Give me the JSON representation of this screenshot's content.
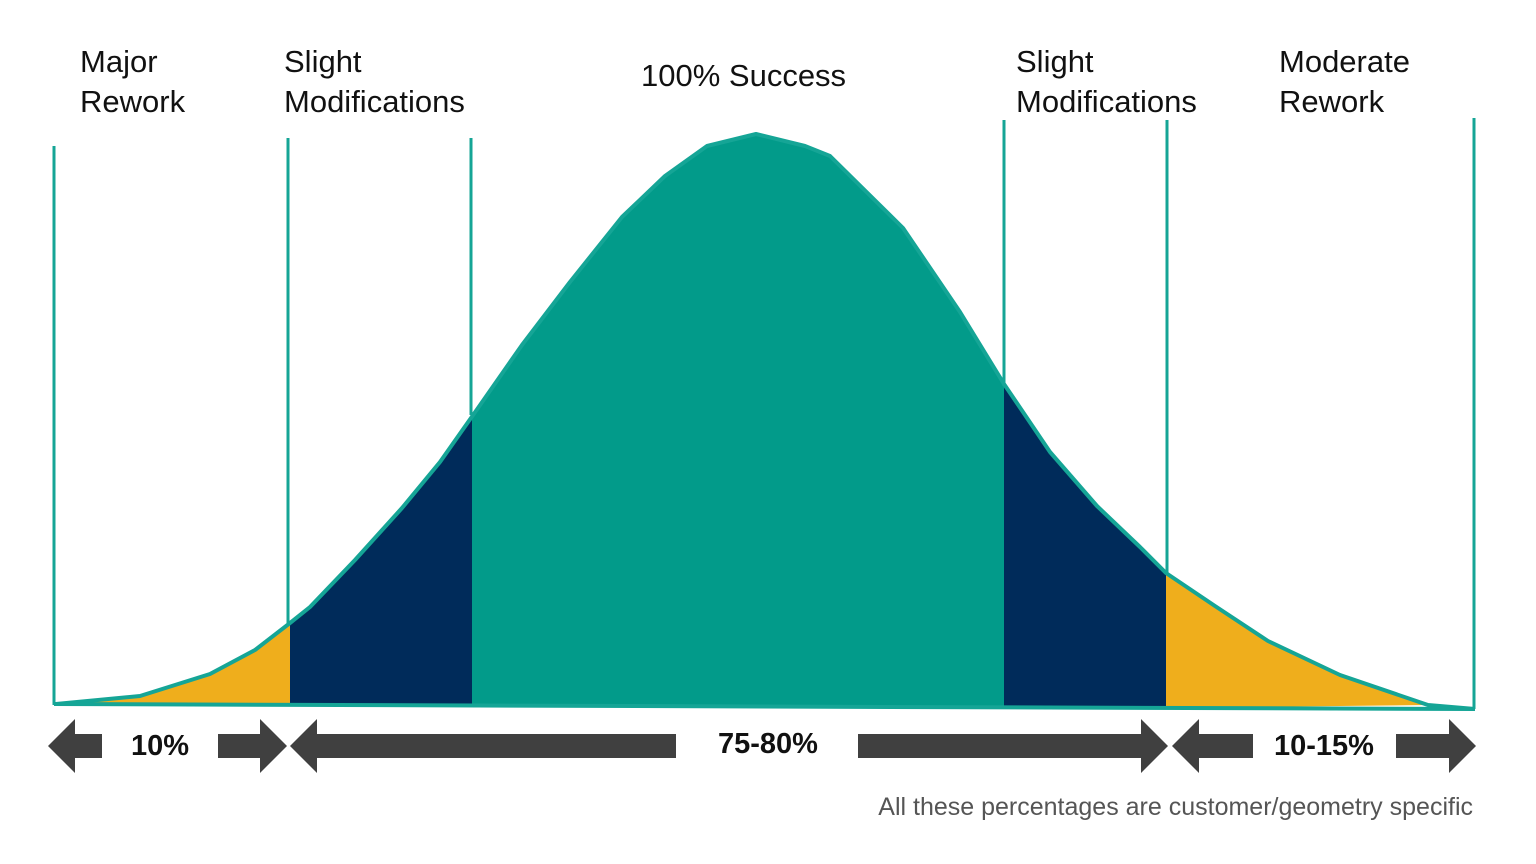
{
  "colors": {
    "success": "#029b8a",
    "slight": "#002b5a",
    "rework": "#efae1c",
    "divider": "#15a596",
    "arrow": "#404040"
  },
  "zones": [
    {
      "id": "major-rework",
      "line1": "Major",
      "line2": "Rework"
    },
    {
      "id": "slight-modifications-left",
      "line1": "Slight",
      "line2": "Modifications"
    },
    {
      "id": "success",
      "line1": "100% Success",
      "line2": ""
    },
    {
      "id": "slight-modifications-right",
      "line1": "Slight",
      "line2": "Modifications"
    },
    {
      "id": "moderate-rework",
      "line1": "Moderate",
      "line2": "Rework"
    }
  ],
  "bands": [
    {
      "id": "left",
      "label": "10%"
    },
    {
      "id": "center",
      "label": "75-80%"
    },
    {
      "id": "right",
      "label": "10-15%"
    }
  ],
  "footnote": "All these percentages are customer/geometry specific"
}
